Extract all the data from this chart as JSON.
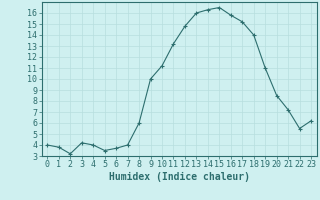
{
  "x": [
    0,
    1,
    2,
    3,
    4,
    5,
    6,
    7,
    8,
    9,
    10,
    11,
    12,
    13,
    14,
    15,
    16,
    17,
    18,
    19,
    20,
    21,
    22,
    23
  ],
  "y": [
    4.0,
    3.8,
    3.2,
    4.2,
    4.0,
    3.5,
    3.7,
    4.0,
    6.0,
    10.0,
    11.2,
    13.2,
    14.8,
    16.0,
    16.3,
    16.5,
    15.8,
    15.2,
    14.0,
    11.0,
    8.5,
    7.2,
    5.5,
    6.2
  ],
  "xlabel": "Humidex (Indice chaleur)",
  "line_color": "#2d6e6e",
  "marker": "+",
  "bg_color": "#cff0f0",
  "grid_major_color": "#b8dede",
  "grid_minor_color": "#d6efef",
  "ylim": [
    3,
    17
  ],
  "xlim": [
    -0.5,
    23.5
  ],
  "yticks": [
    3,
    4,
    5,
    6,
    7,
    8,
    9,
    10,
    11,
    12,
    13,
    14,
    15,
    16
  ],
  "xticks": [
    0,
    1,
    2,
    3,
    4,
    5,
    6,
    7,
    8,
    9,
    10,
    11,
    12,
    13,
    14,
    15,
    16,
    17,
    18,
    19,
    20,
    21,
    22,
    23
  ],
  "tick_color": "#2d6e6e",
  "axis_color": "#2d6e6e",
  "font_color": "#2d6e6e",
  "font_size": 6,
  "label_font_size": 7
}
